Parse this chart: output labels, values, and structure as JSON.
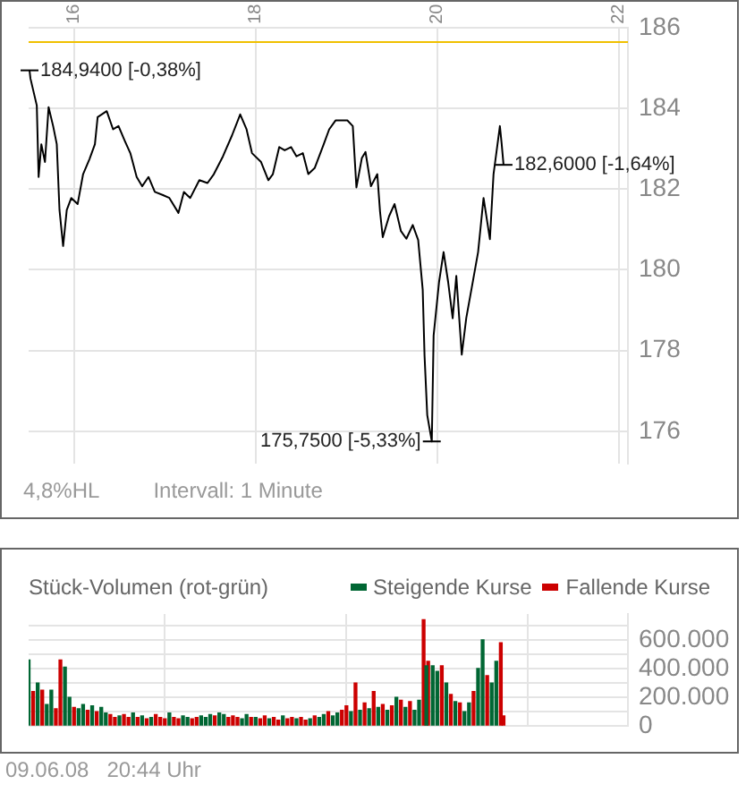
{
  "chart_data": [
    {
      "type": "line",
      "color": "#000000",
      "x": [
        15.51,
        15.52,
        15.59,
        15.61,
        15.64,
        15.68,
        15.72,
        15.77,
        15.81,
        15.84,
        15.88,
        15.92,
        15.97,
        16.04,
        16.1,
        16.17,
        16.23,
        16.26,
        16.36,
        16.43,
        16.49,
        16.56,
        16.62,
        16.69,
        16.75,
        16.82,
        16.89,
        16.98,
        17.05,
        17.15,
        17.21,
        17.28,
        17.38,
        17.47,
        17.54,
        17.64,
        17.74,
        17.83,
        17.9,
        17.96,
        18.06,
        18.14,
        18.19,
        18.26,
        18.32,
        18.39,
        18.45,
        18.52,
        18.58,
        18.65,
        18.75,
        18.81,
        18.88,
        19.01,
        19.07,
        19.11,
        19.17,
        19.21,
        19.27,
        19.34,
        19.37,
        19.4,
        19.47,
        19.53,
        19.6,
        19.66,
        19.73,
        19.79,
        19.84,
        19.86,
        19.89,
        19.94,
        19.96,
        20.02,
        20.07,
        20.12,
        20.17,
        20.21,
        20.27,
        20.32,
        20.38,
        20.45,
        20.51,
        20.58,
        20.62,
        20.69,
        20.71,
        20.73
      ],
      "values": [
        184.94,
        184.74,
        184.07,
        182.3,
        183.11,
        182.67,
        184.03,
        183.56,
        183.11,
        181.48,
        180.59,
        181.48,
        181.78,
        181.63,
        182.37,
        182.74,
        183.11,
        183.78,
        183.93,
        183.48,
        183.56,
        183.19,
        182.89,
        182.3,
        182.07,
        182.3,
        181.93,
        181.85,
        181.78,
        181.41,
        181.93,
        181.78,
        182.22,
        182.15,
        182.37,
        182.81,
        183.33,
        183.85,
        183.48,
        182.89,
        182.67,
        182.22,
        182.37,
        183.04,
        182.96,
        183.04,
        182.81,
        182.89,
        182.37,
        182.52,
        183.11,
        183.48,
        183.7,
        183.7,
        183.56,
        182.04,
        182.77,
        182.92,
        182.07,
        182.37,
        181.44,
        180.81,
        181.33,
        181.63,
        180.96,
        180.77,
        181.11,
        180.74,
        179.51,
        177.88,
        176.4,
        175.75,
        178.37,
        179.7,
        180.44,
        179.7,
        178.8,
        179.85,
        177.9,
        178.81,
        179.56,
        180.44,
        181.78,
        180.76,
        182.37,
        183.56,
        183.11,
        182.6
      ],
      "xlim": [
        15.5,
        22.1
      ],
      "xticks": [
        16,
        18,
        20,
        22
      ],
      "ylim": [
        175.2,
        186
      ],
      "yticks": [
        176,
        178,
        180,
        182,
        184,
        186
      ],
      "grid": true,
      "legend": false,
      "ref_lines": [
        {
          "axis": "y",
          "value": 185.64,
          "color": "#f0c000"
        }
      ],
      "annotations": [
        {
          "text": "184,9400 [-0,38%]",
          "x": 15.51,
          "y": 184.94
        },
        {
          "text": "175,7500 [-5,33%]",
          "x": 19.94,
          "y": 175.75
        },
        {
          "text": "182,6000 [-1,64%]",
          "x": 20.73,
          "y": 182.6
        },
        "4,8%HL",
        "Intervall: 1 Minute"
      ]
    },
    {
      "type": "bar",
      "title": "Stück-Volumen (rot-grün)",
      "series": [
        {
          "name": "Steigende Kurse",
          "color": "#006633",
          "x": [
            15.5,
            15.6,
            15.7,
            15.75,
            15.9,
            15.95,
            16.05,
            16.1,
            16.2,
            16.3,
            16.35,
            16.5,
            16.65,
            16.75,
            16.85,
            17.05,
            17.2,
            17.25,
            17.4,
            17.45,
            17.5,
            17.6,
            17.65,
            17.85,
            17.9,
            18.0,
            18.15,
            18.3,
            18.45,
            18.6,
            18.7,
            18.75,
            18.85,
            18.9,
            19.05,
            19.15,
            19.25,
            19.35,
            19.45,
            19.55,
            19.65,
            19.75,
            19.8,
            19.88,
            19.95,
            20.0,
            20.1,
            20.2,
            20.3,
            20.35,
            20.45,
            20.5,
            20.6,
            20.65
          ],
          "values": [
            460000,
            300000,
            150000,
            250000,
            410000,
            200000,
            120000,
            150000,
            140000,
            130000,
            90000,
            70000,
            90000,
            70000,
            60000,
            90000,
            70000,
            60000,
            70000,
            60000,
            80000,
            90000,
            80000,
            50000,
            80000,
            60000,
            50000,
            70000,
            50000,
            50000,
            60000,
            80000,
            70000,
            90000,
            100000,
            110000,
            120000,
            130000,
            110000,
            200000,
            130000,
            110000,
            180000,
            420000,
            420000,
            380000,
            300000,
            170000,
            100000,
            160000,
            400000,
            600000,
            300000,
            450000
          ]
        },
        {
          "name": "Fallende Kurse",
          "color": "#cc0000",
          "x": [
            15.55,
            15.65,
            15.8,
            15.85,
            16.0,
            16.15,
            16.25,
            16.4,
            16.45,
            16.55,
            16.6,
            16.7,
            16.8,
            16.9,
            16.95,
            17.0,
            17.1,
            17.15,
            17.3,
            17.35,
            17.55,
            17.7,
            17.75,
            17.8,
            17.95,
            18.05,
            18.1,
            18.2,
            18.25,
            18.35,
            18.4,
            18.5,
            18.55,
            18.65,
            18.8,
            18.95,
            19.0,
            19.1,
            19.2,
            19.3,
            19.4,
            19.5,
            19.6,
            19.7,
            19.85,
            19.9,
            20.05,
            20.15,
            20.25,
            20.4,
            20.55,
            20.7,
            20.73
          ],
          "values": [
            240000,
            250000,
            120000,
            460000,
            130000,
            110000,
            100000,
            80000,
            60000,
            80000,
            60000,
            60000,
            50000,
            80000,
            60000,
            50000,
            60000,
            50000,
            50000,
            60000,
            70000,
            60000,
            70000,
            60000,
            60000,
            50000,
            70000,
            60000,
            40000,
            50000,
            60000,
            60000,
            40000,
            70000,
            100000,
            110000,
            140000,
            300000,
            160000,
            240000,
            150000,
            140000,
            180000,
            170000,
            740000,
            450000,
            420000,
            220000,
            160000,
            240000,
            350000,
            580000,
            70000
          ]
        }
      ],
      "xlim": [
        15.5,
        22.1
      ],
      "xticks": [
        16,
        18,
        20,
        22
      ],
      "ylim": [
        0,
        780000
      ],
      "yticks": [
        {
          "value": 0,
          "label": "0"
        },
        {
          "value": 100000,
          "label": null
        },
        {
          "value": 200000,
          "label": "200.000"
        },
        {
          "value": 300000,
          "label": null
        },
        {
          "value": 400000,
          "label": "400.000"
        },
        {
          "value": 500000,
          "label": null
        },
        {
          "value": 600000,
          "label": "600.000"
        },
        {
          "value": 700000,
          "label": null
        }
      ],
      "tick_labels": "y",
      "grid": true,
      "legend": "top right",
      "annotations": [
        "09.06.08   20:44 Uhr"
      ]
    }
  ]
}
